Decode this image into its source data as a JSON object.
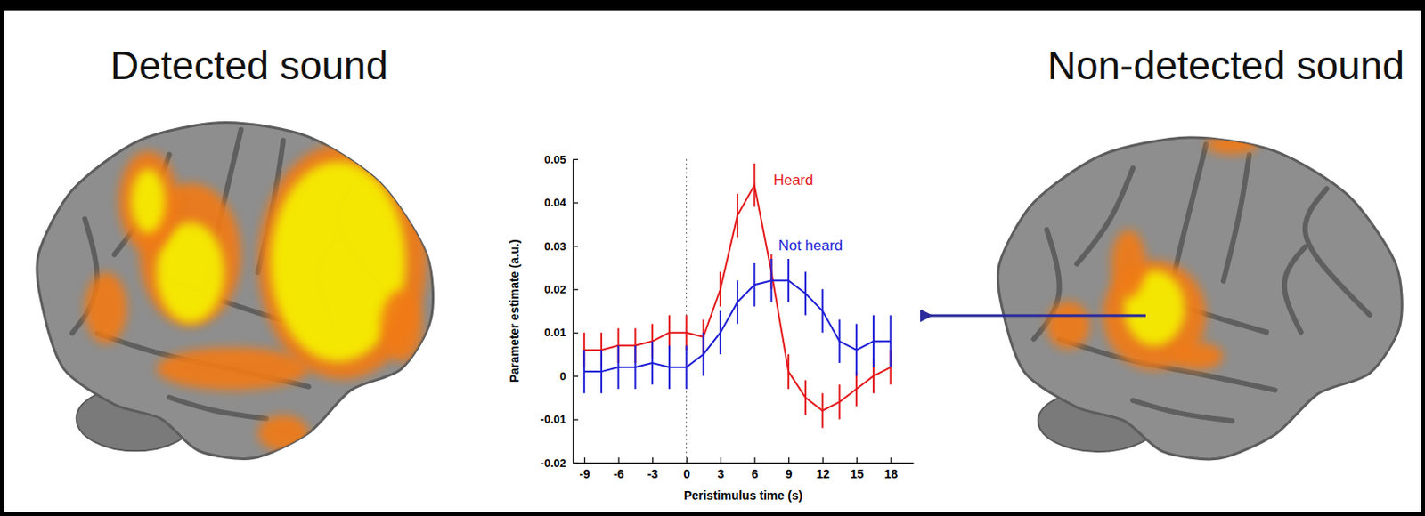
{
  "headings": {
    "left": "Detected sound",
    "right": "Non-detected sound"
  },
  "chart_data": {
    "type": "line",
    "x_label": "Peristimulus time (s)",
    "y_label": "Parameter estimate (a.u.)",
    "x": [
      -9,
      -7.5,
      -6,
      -4.5,
      -3,
      -1.5,
      0,
      1.5,
      3,
      4.5,
      6,
      7.5,
      9,
      10.5,
      12,
      13.5,
      15,
      16.5,
      18
    ],
    "xlim": [
      -10,
      20
    ],
    "xticks": [
      -9,
      -6,
      -3,
      0,
      3,
      6,
      9,
      12,
      15,
      18
    ],
    "ylim": [
      -0.02,
      0.05
    ],
    "yticks": [
      -0.02,
      -0.01,
      0,
      0.01,
      0.02,
      0.03,
      0.04,
      0.05
    ],
    "reference_lines": [
      {
        "x": 0
      }
    ],
    "series": [
      {
        "name": "Heard",
        "color": "#e41a1c",
        "values": [
          0.006,
          0.006,
          0.007,
          0.007,
          0.008,
          0.01,
          0.01,
          0.009,
          0.02,
          0.037,
          0.044,
          0.024,
          0.001,
          -0.005,
          -0.008,
          -0.006,
          -0.003,
          0.0,
          0.002
        ],
        "errors": [
          0.004,
          0.004,
          0.004,
          0.004,
          0.004,
          0.004,
          0.004,
          0.004,
          0.004,
          0.005,
          0.005,
          0.004,
          0.004,
          0.004,
          0.004,
          0.004,
          0.004,
          0.004,
          0.004
        ]
      },
      {
        "name": "Not heard",
        "color": "#1f1fd6",
        "values": [
          0.001,
          0.001,
          0.002,
          0.002,
          0.003,
          0.002,
          0.002,
          0.005,
          0.01,
          0.017,
          0.021,
          0.022,
          0.022,
          0.019,
          0.015,
          0.008,
          0.006,
          0.008,
          0.008
        ],
        "errors": [
          0.005,
          0.005,
          0.005,
          0.005,
          0.005,
          0.005,
          0.005,
          0.005,
          0.005,
          0.005,
          0.005,
          0.005,
          0.005,
          0.005,
          0.005,
          0.005,
          0.006,
          0.006,
          0.006
        ]
      }
    ]
  }
}
